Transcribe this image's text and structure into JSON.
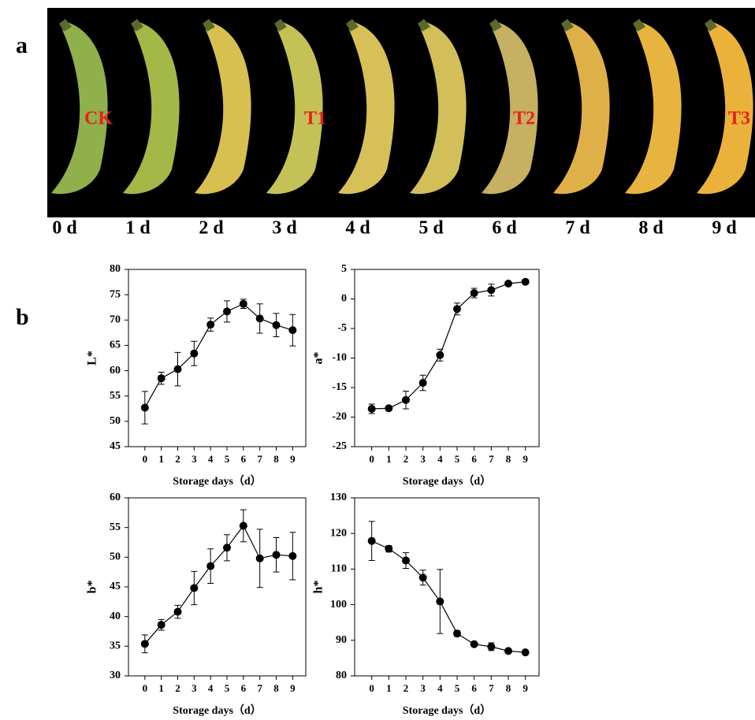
{
  "panel_labels": [
    "a",
    "b"
  ],
  "photo": {
    "treatment_labels": [
      "CK",
      "T1",
      "T2",
      "T3"
    ],
    "day_labels": [
      "0 d",
      "1 d",
      "2 d",
      "3 d",
      "4 d",
      "5 d",
      "6 d",
      "7 d",
      "8 d",
      "9 d"
    ]
  },
  "chart_data": [
    {
      "type": "line",
      "y_label": "L*",
      "x_label": "Storage days（d）",
      "x": [
        0,
        1,
        2,
        3,
        4,
        5,
        6,
        7,
        8,
        9
      ],
      "xlim": [
        -1,
        9.8
      ],
      "xticks": [
        0,
        1,
        2,
        3,
        4,
        5,
        6,
        7,
        8,
        9
      ],
      "ylim": [
        45,
        80
      ],
      "yticks": [
        45,
        50,
        55,
        60,
        65,
        70,
        75,
        80
      ],
      "series": [
        {
          "color": "#000000",
          "values": [
            52.7,
            58.5,
            60.3,
            63.4,
            69.1,
            71.7,
            73.2,
            70.3,
            69.0,
            68.0
          ],
          "errors": [
            3.2,
            1.2,
            3.3,
            2.4,
            1.3,
            2.1,
            0.9,
            2.9,
            2.3,
            3.1
          ]
        }
      ]
    },
    {
      "type": "line",
      "y_label": "a*",
      "x_label": "Storage days（d）",
      "x": [
        0,
        1,
        2,
        3,
        4,
        5,
        6,
        7,
        8,
        9
      ],
      "xlim": [
        -1,
        9.8
      ],
      "xticks": [
        0,
        1,
        2,
        3,
        4,
        5,
        6,
        7,
        8,
        9
      ],
      "ylim": [
        -25,
        5
      ],
      "yticks": [
        -25,
        -20,
        -15,
        -10,
        -5,
        0,
        5
      ],
      "series": [
        {
          "color": "#000000",
          "values": [
            -18.6,
            -18.5,
            -17.1,
            -14.2,
            -9.5,
            -1.7,
            1.0,
            1.5,
            2.6,
            2.9
          ],
          "errors": [
            0.8,
            0.4,
            1.5,
            1.3,
            1.0,
            1.0,
            0.8,
            1.0,
            0.3,
            0.4
          ]
        }
      ]
    },
    {
      "type": "line",
      "y_label": "b*",
      "x_label": "Storage days（d）",
      "x": [
        0,
        1,
        2,
        3,
        4,
        5,
        6,
        7,
        8,
        9
      ],
      "xlim": [
        -1,
        9.8
      ],
      "xticks": [
        0,
        1,
        2,
        3,
        4,
        5,
        6,
        7,
        8,
        9
      ],
      "ylim": [
        30,
        60
      ],
      "yticks": [
        30,
        35,
        40,
        45,
        50,
        55,
        60
      ],
      "series": [
        {
          "color": "#000000",
          "values": [
            35.4,
            38.6,
            40.8,
            44.8,
            48.5,
            51.6,
            55.3,
            49.8,
            50.4,
            50.2
          ],
          "errors": [
            1.5,
            0.9,
            1.1,
            2.8,
            2.9,
            2.2,
            2.7,
            4.9,
            2.9,
            4.0
          ]
        }
      ]
    },
    {
      "type": "line",
      "y_label": "h*",
      "x_label": "Storage days（d）",
      "x": [
        0,
        1,
        2,
        3,
        4,
        5,
        6,
        7,
        8,
        9
      ],
      "xlim": [
        -1,
        9.8
      ],
      "xticks": [
        0,
        1,
        2,
        3,
        4,
        5,
        6,
        7,
        8,
        9
      ],
      "ylim": [
        80,
        130
      ],
      "yticks": [
        80,
        90,
        100,
        110,
        120,
        130
      ],
      "series": [
        {
          "color": "#000000",
          "values": [
            117.9,
            115.7,
            112.4,
            107.6,
            100.9,
            91.9,
            88.9,
            88.2,
            87.0,
            86.6
          ],
          "errors": [
            5.5,
            0.9,
            2.2,
            2.1,
            9.0,
            0.8,
            0.5,
            1.1,
            0.4,
            0.5
          ]
        }
      ]
    }
  ]
}
